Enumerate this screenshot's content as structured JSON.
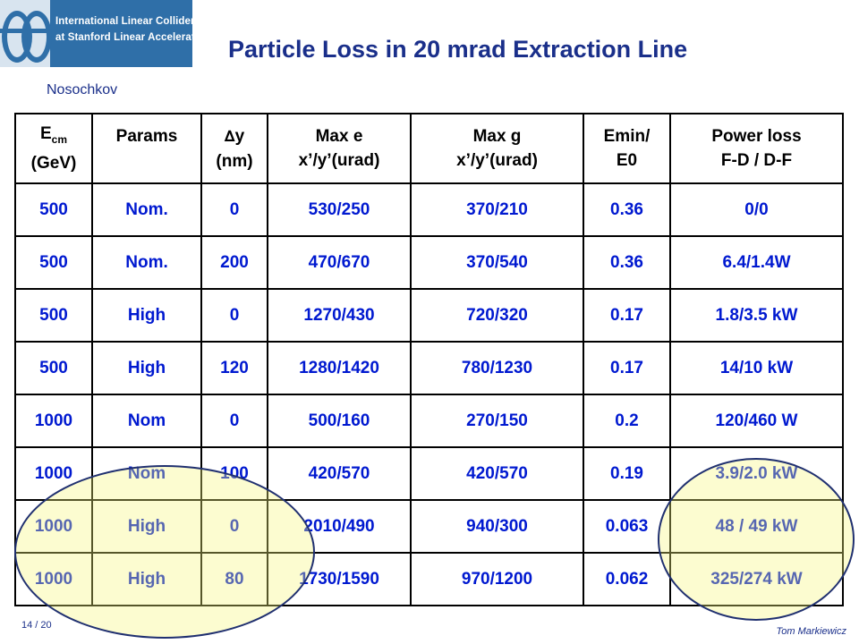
{
  "logo": {
    "line1": "International Linear Collider",
    "line2": "at Stanford Linear Accelerator Center"
  },
  "title": "Particle Loss in 20 mrad Extraction Line",
  "author": "Nosochkov",
  "table": {
    "headers": {
      "ecm_main": "E",
      "ecm_sub": "cm",
      "ecm_unit": "(GeV)",
      "params": "Params",
      "dy_symbol": "∆",
      "dy_var": "y",
      "dy_unit": "(nm)",
      "maxe_l1": "Max e",
      "maxe_l2": "x’/y’(urad)",
      "maxg_l1": "Max g",
      "maxg_l2": "x’/y’(urad)",
      "emin_l1": "Emin/",
      "emin_l2": "E0",
      "power_l1": "Power loss",
      "power_l2": "F-D / D-F"
    },
    "rows": [
      [
        "500",
        "Nom.",
        "0",
        "530/250",
        "370/210",
        "0.36",
        "0/0"
      ],
      [
        "500",
        "Nom.",
        "200",
        "470/670",
        "370/540",
        "0.36",
        "6.4/1.4W"
      ],
      [
        "500",
        "High",
        "0",
        "1270/430",
        "720/320",
        "0.17",
        "1.8/3.5 kW"
      ],
      [
        "500",
        "High",
        "120",
        "1280/1420",
        "780/1230",
        "0.17",
        "14/10 kW"
      ],
      [
        "1000",
        "Nom",
        "0",
        "500/160",
        "270/150",
        "0.2",
        "120/460 W"
      ],
      [
        "1000",
        "Nom",
        "100",
        "420/570",
        "420/570",
        "0.19",
        "3.9/2.0 kW"
      ],
      [
        "1000",
        "High",
        "0",
        "2010/490",
        "940/300",
        "0.063",
        "48 / 49 kW"
      ],
      [
        "1000",
        "High",
        "80",
        "1730/1590",
        "970/1200",
        "0.062",
        "325/274 kW"
      ]
    ]
  },
  "footer": {
    "page": "14 / 20",
    "author": "Tom Markiewicz"
  },
  "colors": {
    "title": "#1a2f8a",
    "cell_text": "#0019d0",
    "highlight": "#f5f578"
  }
}
